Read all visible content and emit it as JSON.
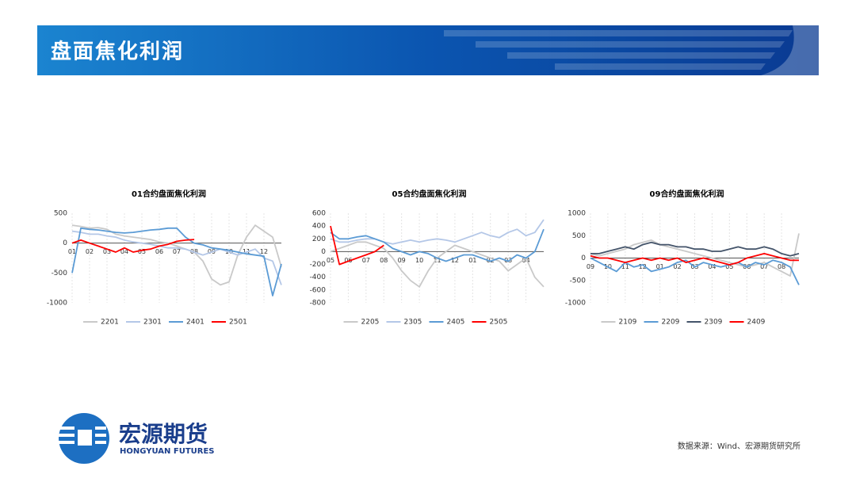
{
  "header": {
    "title": "盘面焦化利润"
  },
  "chart_data": [
    {
      "type": "line",
      "title": "01合约盘面焦化利润",
      "categories": [
        "01",
        null,
        "02",
        null,
        "03",
        null,
        "04",
        null,
        "05",
        null,
        "06",
        null,
        "07",
        null,
        "08",
        null,
        "09",
        null,
        "10",
        null,
        "11",
        null,
        "12",
        null,
        null
      ],
      "ylim": [
        -1000,
        500
      ],
      "yticks": [
        -1000,
        -500,
        0,
        500
      ],
      "legend": "bottom",
      "series": [
        {
          "name": "2201",
          "color": "#c9c9c9",
          "values": [
            300,
            280,
            250,
            260,
            230,
            150,
            120,
            100,
            80,
            60,
            20,
            0,
            -50,
            -100,
            -150,
            -300,
            -600,
            -700,
            -650,
            -200,
            100,
            300,
            200,
            100,
            -400
          ]
        },
        {
          "name": "2301",
          "color": "#b4c7e7",
          "values": [
            200,
            180,
            150,
            150,
            120,
            100,
            50,
            20,
            0,
            -20,
            -50,
            -80,
            -80,
            -100,
            -150,
            -200,
            -150,
            -100,
            -150,
            -200,
            -150,
            -100,
            -250,
            -300,
            -700
          ]
        },
        {
          "name": "2401",
          "color": "#5b9bd5",
          "values": [
            -500,
            250,
            230,
            220,
            200,
            180,
            170,
            180,
            200,
            220,
            230,
            250,
            250,
            100,
            0,
            -30,
            -80,
            -100,
            -120,
            -150,
            -180,
            -200,
            -220,
            -880,
            -350
          ]
        },
        {
          "name": "2501",
          "color": "#ff0000",
          "values": [
            0,
            50,
            0,
            -50,
            -100,
            -150,
            -80,
            -150,
            -120,
            -100,
            -50,
            -20,
            30,
            50,
            60,
            null,
            null,
            null,
            null,
            null,
            null,
            null,
            null,
            null,
            null
          ]
        }
      ]
    },
    {
      "type": "line",
      "title": "05合约盘面焦化利润",
      "categories": [
        "05",
        null,
        "06",
        null,
        "07",
        null,
        "08",
        null,
        "09",
        null,
        "10",
        null,
        "11",
        null,
        "12",
        null,
        "01",
        null,
        "02",
        null,
        "03",
        null,
        "04",
        null,
        null
      ],
      "ylim": [
        -800,
        600
      ],
      "yticks": [
        -800,
        -600,
        -400,
        -200,
        0,
        200,
        400,
        600
      ],
      "legend": "bottom",
      "series": [
        {
          "name": "2205",
          "color": "#c9c9c9",
          "values": [
            0,
            50,
            100,
            150,
            150,
            100,
            50,
            -100,
            -300,
            -450,
            -550,
            -300,
            -100,
            0,
            100,
            50,
            0,
            -50,
            -100,
            -150,
            -300,
            -200,
            -100,
            -400,
            -550
          ]
        },
        {
          "name": "2305",
          "color": "#b4c7e7",
          "values": [
            200,
            150,
            150,
            180,
            200,
            200,
            150,
            120,
            150,
            180,
            150,
            180,
            200,
            180,
            150,
            200,
            250,
            300,
            250,
            220,
            300,
            350,
            250,
            300,
            500
          ]
        },
        {
          "name": "2405",
          "color": "#5b9bd5",
          "values": [
            300,
            200,
            200,
            230,
            250,
            200,
            150,
            50,
            0,
            -50,
            0,
            -30,
            -100,
            -150,
            -100,
            -50,
            -50,
            -100,
            -150,
            -100,
            -150,
            -50,
            -100,
            0,
            350
          ]
        },
        {
          "name": "2505",
          "color": "#ff0000",
          "values": [
            400,
            -200,
            -150,
            -100,
            -50,
            0,
            100,
            null,
            null,
            null,
            null,
            null,
            null,
            null,
            null,
            null,
            null,
            null,
            null,
            null,
            null,
            null,
            null,
            null,
            null
          ]
        }
      ]
    },
    {
      "type": "line",
      "title": "09合约盘面焦化利润",
      "categories": [
        "09",
        null,
        "10",
        null,
        "11",
        null,
        "12",
        null,
        "01",
        null,
        "02",
        null,
        "03",
        null,
        "04",
        null,
        "05",
        null,
        "06",
        null,
        "07",
        null,
        "08",
        null,
        null
      ],
      "ylim": [
        -1000,
        1000
      ],
      "yticks": [
        -1000,
        -500,
        0,
        500,
        1000
      ],
      "legend": "bottom",
      "series": [
        {
          "name": "2109",
          "color": "#c9c9c9",
          "values": [
            100,
            50,
            100,
            150,
            200,
            300,
            350,
            400,
            300,
            250,
            200,
            150,
            100,
            50,
            0,
            -50,
            -100,
            -150,
            -200,
            -150,
            -100,
            -200,
            -300,
            -400,
            550
          ]
        },
        {
          "name": "2209",
          "color": "#5b9bd5",
          "values": [
            0,
            -100,
            -200,
            -300,
            -100,
            -200,
            -150,
            -300,
            -250,
            -200,
            -100,
            -50,
            -200,
            -100,
            -150,
            -200,
            -150,
            -100,
            -200,
            -100,
            -150,
            -50,
            -100,
            -200,
            -600
          ]
        },
        {
          "name": "2309",
          "color": "#44546a",
          "values": [
            100,
            100,
            150,
            200,
            250,
            200,
            300,
            350,
            300,
            300,
            250,
            250,
            200,
            200,
            150,
            150,
            200,
            250,
            200,
            200,
            250,
            200,
            100,
            50,
            100
          ]
        },
        {
          "name": "2409",
          "color": "#ff0000",
          "values": [
            50,
            0,
            0,
            -50,
            -100,
            -50,
            0,
            -50,
            0,
            -50,
            0,
            -100,
            -50,
            0,
            -50,
            -100,
            -150,
            -100,
            0,
            50,
            100,
            50,
            0,
            -50,
            -50
          ]
        }
      ]
    }
  ],
  "footer": {
    "logo_cn": "宏源期货",
    "logo_en": "HONGYUAN FUTURES",
    "source": "数据来源：Wind、宏源期货研究所"
  }
}
